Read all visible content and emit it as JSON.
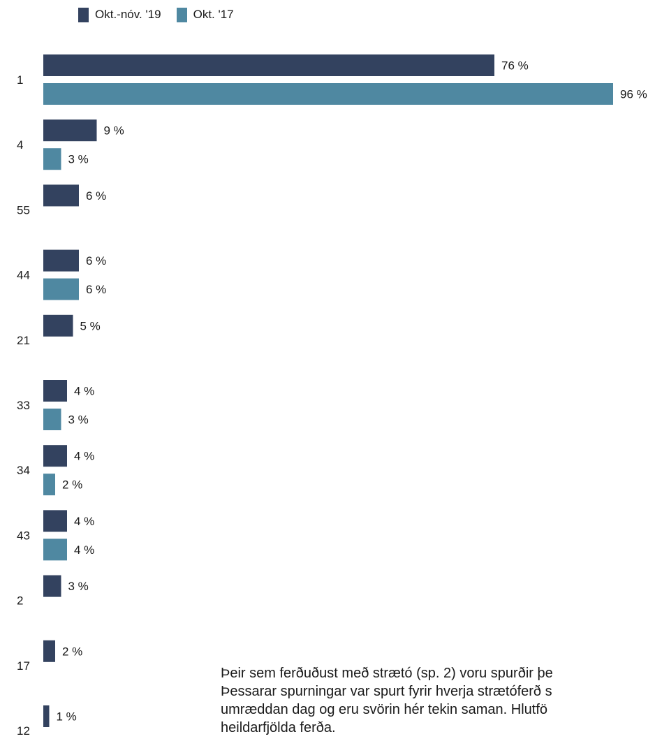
{
  "legend": [
    {
      "label": "Okt.-nóv. '19",
      "color": "#33425f"
    },
    {
      "label": "Okt. '17",
      "color": "#4f88a1"
    }
  ],
  "chart_data": {
    "type": "bar",
    "orientation": "horizontal",
    "categories": [
      "1",
      "4",
      "55",
      "44",
      "21",
      "33",
      "34",
      "43",
      "2",
      "17",
      "12"
    ],
    "series": [
      {
        "name": "Okt.-nóv. '19",
        "color": "#33425f",
        "values": [
          76,
          9,
          6,
          6,
          5,
          4,
          4,
          4,
          3,
          2,
          1
        ]
      },
      {
        "name": "Okt. '17",
        "color": "#4f88a1",
        "values": [
          96,
          3,
          null,
          6,
          null,
          3,
          2,
          4,
          null,
          null,
          null
        ]
      }
    ],
    "value_suffix": " %",
    "xlim": [
      0,
      100
    ],
    "legend_position": "top-left",
    "grid": false
  },
  "note": {
    "lines": [
      "Þeir sem ferðuðust með strætó (sp. 2) voru spurðir þe",
      "Þessarar spurningar var spurt fyrir hverja strætóferð s",
      "umræddan dag og eru svörin hér tekin saman. Hlutfö",
      "heildarfjölda ferða."
    ]
  }
}
